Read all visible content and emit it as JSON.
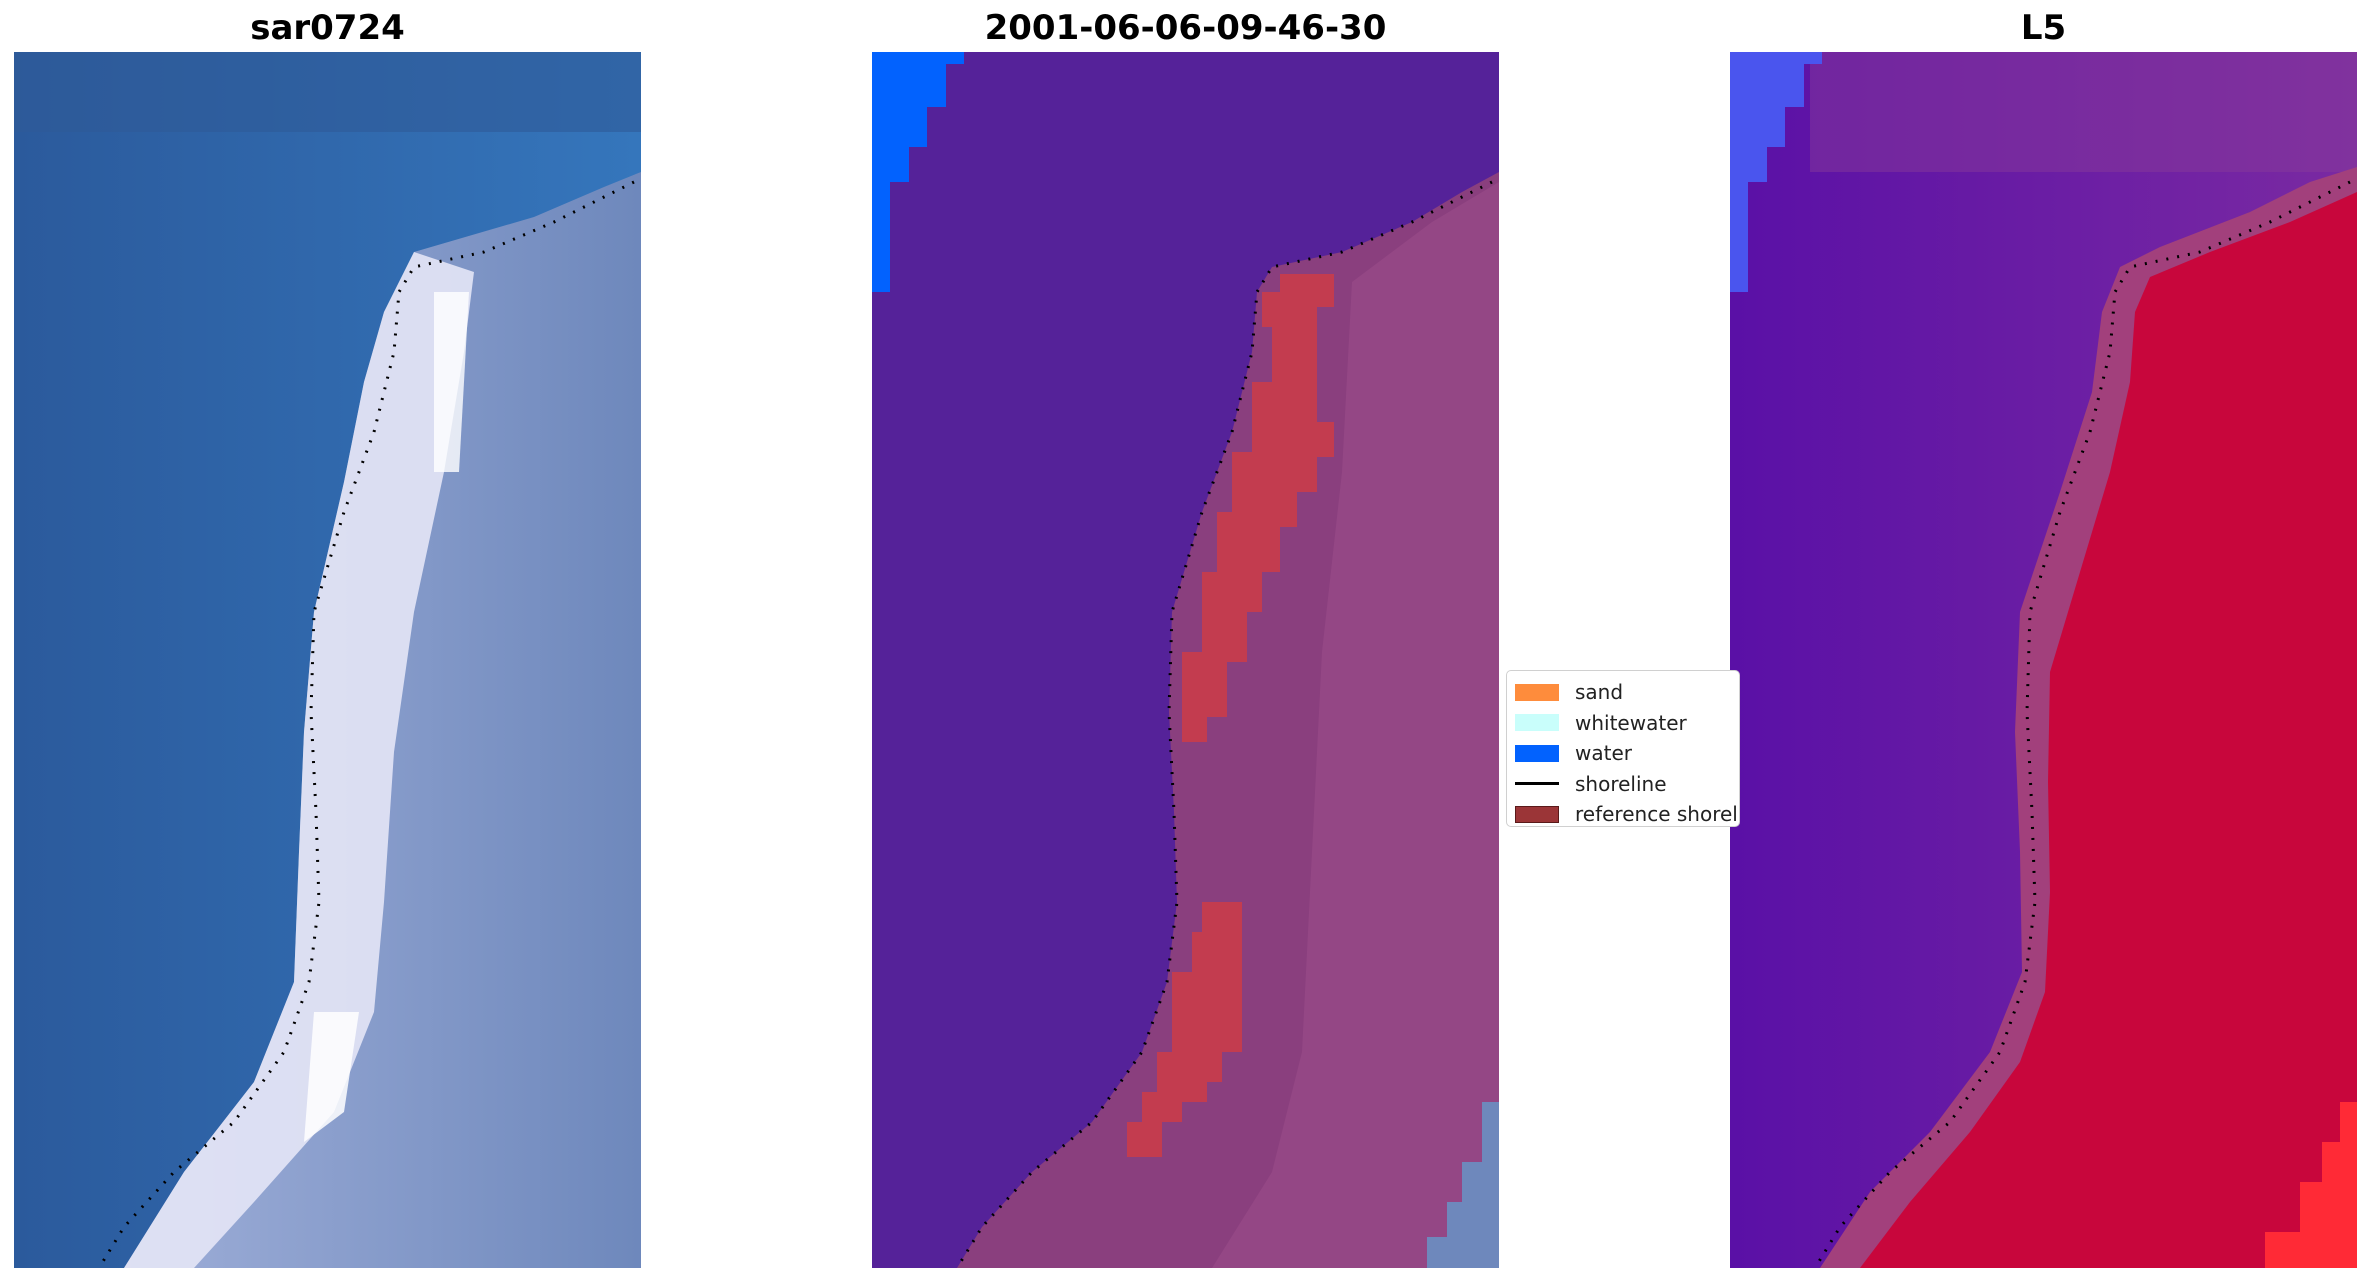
{
  "panels": [
    {
      "title": "sar0724"
    },
    {
      "title": "2001-06-06-09-46-30"
    },
    {
      "title": "L5"
    }
  ],
  "legend": {
    "items": [
      {
        "label": "sand",
        "color": "#fe8c3c",
        "kind": "patch"
      },
      {
        "label": "whitewater",
        "color": "#c9fefb",
        "kind": "patch"
      },
      {
        "label": "water",
        "color": "#0262fe",
        "kind": "patch"
      },
      {
        "label": "shoreline",
        "color": "#000000",
        "kind": "line"
      },
      {
        "label": "reference shoreline buffer",
        "color": "#9b3537",
        "kind": "patch"
      }
    ]
  },
  "colors": {
    "rgb_water": "#2d68b2",
    "rgb_land": "#8093c0",
    "rgb_surf": "#eeeefa",
    "class_water": "#552299",
    "class_land": "#8a3f7e",
    "class_buffer": "#c33c4f",
    "index_water": "#6a1aa8",
    "index_land": "#c8003c"
  }
}
